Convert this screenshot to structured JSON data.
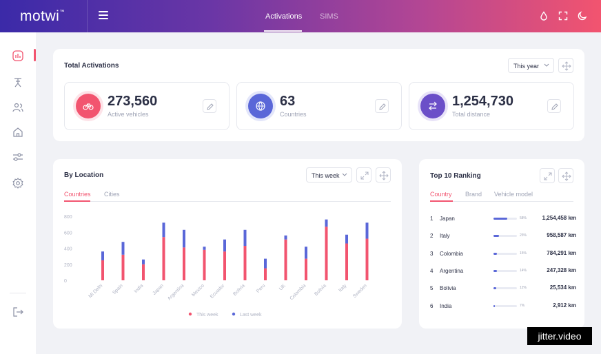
{
  "app": {
    "logo": "motwi",
    "logo_mark": "™"
  },
  "header": {
    "tabs": [
      {
        "label": "Activations"
      },
      {
        "label": "SIMS"
      }
    ]
  },
  "icons": {
    "sidebar": [
      "chart-icon",
      "scooter-icon",
      "users-icon",
      "home-icon",
      "sliders-icon",
      "gear-icon",
      "logout-icon"
    ],
    "top": [
      "drop-icon",
      "fullscreen-icon",
      "moon-icon"
    ]
  },
  "colors": {
    "accent": "#f2546f",
    "this_week": "#f2546f",
    "last_week": "#5a67d8",
    "purple": "#6b4fc8"
  },
  "total": {
    "title": "Total Activations",
    "period": "This year",
    "stats": [
      {
        "value": "273,560",
        "label": "Active vehicles",
        "icon": "bike-icon"
      },
      {
        "value": "63",
        "label": "Countries",
        "icon": "globe-icon"
      },
      {
        "value": "1,254,730",
        "label": "Total distance",
        "icon": "route-icon"
      }
    ]
  },
  "location": {
    "title": "By Location",
    "period": "This week",
    "tabs": [
      "Countries",
      "Cities"
    ],
    "legend": [
      "This week",
      "Last week"
    ]
  },
  "ranking": {
    "title": "Top 10 Ranking",
    "tabs": [
      "Country",
      "Brand",
      "Vehicle model"
    ],
    "rows": [
      {
        "rank": "1",
        "name": "Japan",
        "pct_label": "58%",
        "pct": 0.58,
        "distance": "1,254,458 km"
      },
      {
        "rank": "2",
        "name": "Italy",
        "pct_label": "23%",
        "pct": 0.23,
        "distance": "958,587 km"
      },
      {
        "rank": "3",
        "name": "Colombia",
        "pct_label": "15%",
        "pct": 0.15,
        "distance": "784,291 km"
      },
      {
        "rank": "4",
        "name": "Argentina",
        "pct_label": "14%",
        "pct": 0.14,
        "distance": "247,328 km"
      },
      {
        "rank": "5",
        "name": "Bolivia",
        "pct_label": "12%",
        "pct": 0.12,
        "distance": "25,534 km"
      },
      {
        "rank": "6",
        "name": "India",
        "pct_label": "7%",
        "pct": 0.07,
        "distance": "2,912 km"
      }
    ]
  },
  "chart_data": {
    "type": "bar",
    "stacked": true,
    "categories": [
      "Mi Delhi",
      "Spain",
      "India",
      "Japan",
      "Argentina",
      "Mexico",
      "Ecuador",
      "Bolivia",
      "Peru",
      "UK",
      "Colombia",
      "Bolivia",
      "Italy",
      "Sweden"
    ],
    "series": [
      {
        "name": "This week",
        "values": [
          250,
          320,
          200,
          540,
          410,
          380,
          360,
          430,
          150,
          510,
          270,
          670,
          460,
          520
        ]
      },
      {
        "name": "Last week",
        "values": [
          110,
          160,
          60,
          180,
          220,
          40,
          150,
          200,
          120,
          50,
          150,
          90,
          110,
          200
        ]
      }
    ],
    "yticks": [
      0,
      200,
      400,
      600,
      800
    ],
    "ylim": [
      0,
      800
    ],
    "legend_position": "bottom"
  },
  "watermark": "jitter.video"
}
